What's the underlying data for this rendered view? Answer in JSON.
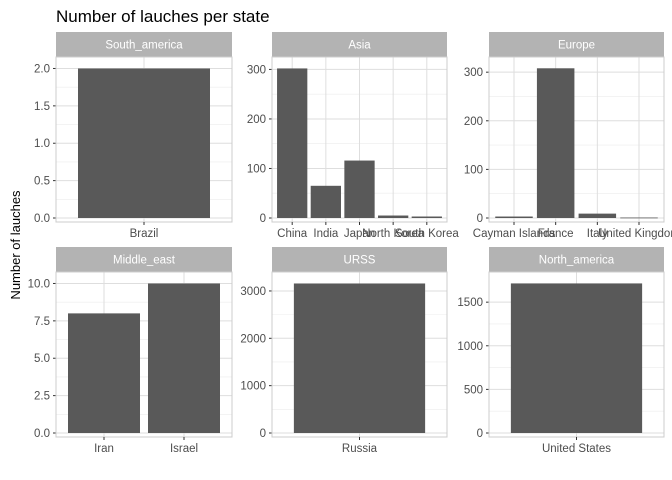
{
  "chart_data": {
    "type": "bar",
    "title": "Number of lauches per state",
    "ylabel": "Number of lauches",
    "xlabel": "",
    "bar_color": "#595959",
    "strip_color": "#b3b3b3",
    "grid_color": "#dedede",
    "facets": [
      {
        "name": "South_america",
        "categories": [
          "Brazil"
        ],
        "values": [
          2
        ],
        "ylim": [
          0,
          2.1
        ],
        "yticks": [
          "0.0",
          "0.5",
          "1.0",
          "1.5",
          "2.0"
        ],
        "ytick_values": [
          0,
          0.5,
          1.0,
          1.5,
          2.0
        ]
      },
      {
        "name": "Asia",
        "categories": [
          "China",
          "India",
          "Japan",
          "North Korea",
          "South Korea"
        ],
        "values": [
          302,
          65,
          116,
          5,
          3
        ],
        "ylim": [
          0,
          317
        ],
        "yticks": [
          "0",
          "100",
          "200",
          "300"
        ],
        "ytick_values": [
          0,
          100,
          200,
          300
        ]
      },
      {
        "name": "Europe",
        "categories": [
          "Cayman Islands",
          "France",
          "Italy",
          "United Kingdom"
        ],
        "values": [
          3,
          308,
          9,
          1
        ],
        "ylim": [
          0,
          323
        ],
        "yticks": [
          "0",
          "100",
          "200",
          "300"
        ],
        "ytick_values": [
          0,
          100,
          200,
          300
        ]
      },
      {
        "name": "Middle_east",
        "categories": [
          "Iran",
          "Israel"
        ],
        "values": [
          8,
          10
        ],
        "ylim": [
          0,
          10.5
        ],
        "yticks": [
          "0.0",
          "2.5",
          "5.0",
          "7.5",
          "10.0"
        ],
        "ytick_values": [
          0,
          2.5,
          5.0,
          7.5,
          10.0
        ]
      },
      {
        "name": "URSS",
        "categories": [
          "Russia"
        ],
        "values": [
          3158
        ],
        "ylim": [
          0,
          3316
        ],
        "yticks": [
          "0",
          "1000",
          "2000",
          "3000"
        ],
        "ytick_values": [
          0,
          1000,
          2000,
          3000
        ]
      },
      {
        "name": "North_america",
        "categories": [
          "United States"
        ],
        "values": [
          1715
        ],
        "ylim": [
          0,
          1800
        ],
        "yticks": [
          "0",
          "500",
          "1000",
          "1500"
        ],
        "ytick_values": [
          0,
          500,
          1000,
          1500
        ]
      }
    ]
  }
}
